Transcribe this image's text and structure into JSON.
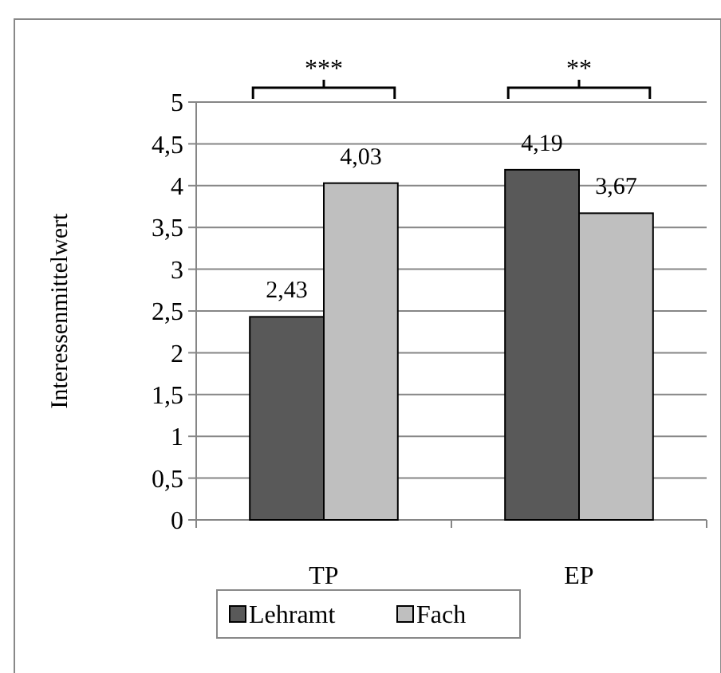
{
  "chart_data": {
    "type": "bar",
    "ylabel": "Interessenmittelwert",
    "categories": [
      "TP",
      "EP"
    ],
    "series": [
      {
        "name": "Lehramt",
        "color": "#595959",
        "values": [
          2.43,
          4.19
        ],
        "value_labels": [
          "2,43",
          "4,19"
        ]
      },
      {
        "name": "Fach",
        "color": "#bfbfbf",
        "values": [
          4.03,
          3.67
        ],
        "value_labels": [
          "4,03",
          "3,67"
        ]
      }
    ],
    "ylim": [
      0,
      5
    ],
    "yticks": [
      0,
      {
        "value": 0.5,
        "label": "0,5"
      },
      1,
      {
        "value": 1.5,
        "label": "1,5"
      },
      2,
      {
        "value": 2.5,
        "label": "2,5"
      },
      3,
      {
        "value": 3.5,
        "label": "3,5"
      },
      4,
      {
        "value": 4.5,
        "label": "4,5"
      },
      5
    ],
    "annotations": [
      "***",
      "**"
    ],
    "grid": "y",
    "legend": "bottom"
  }
}
